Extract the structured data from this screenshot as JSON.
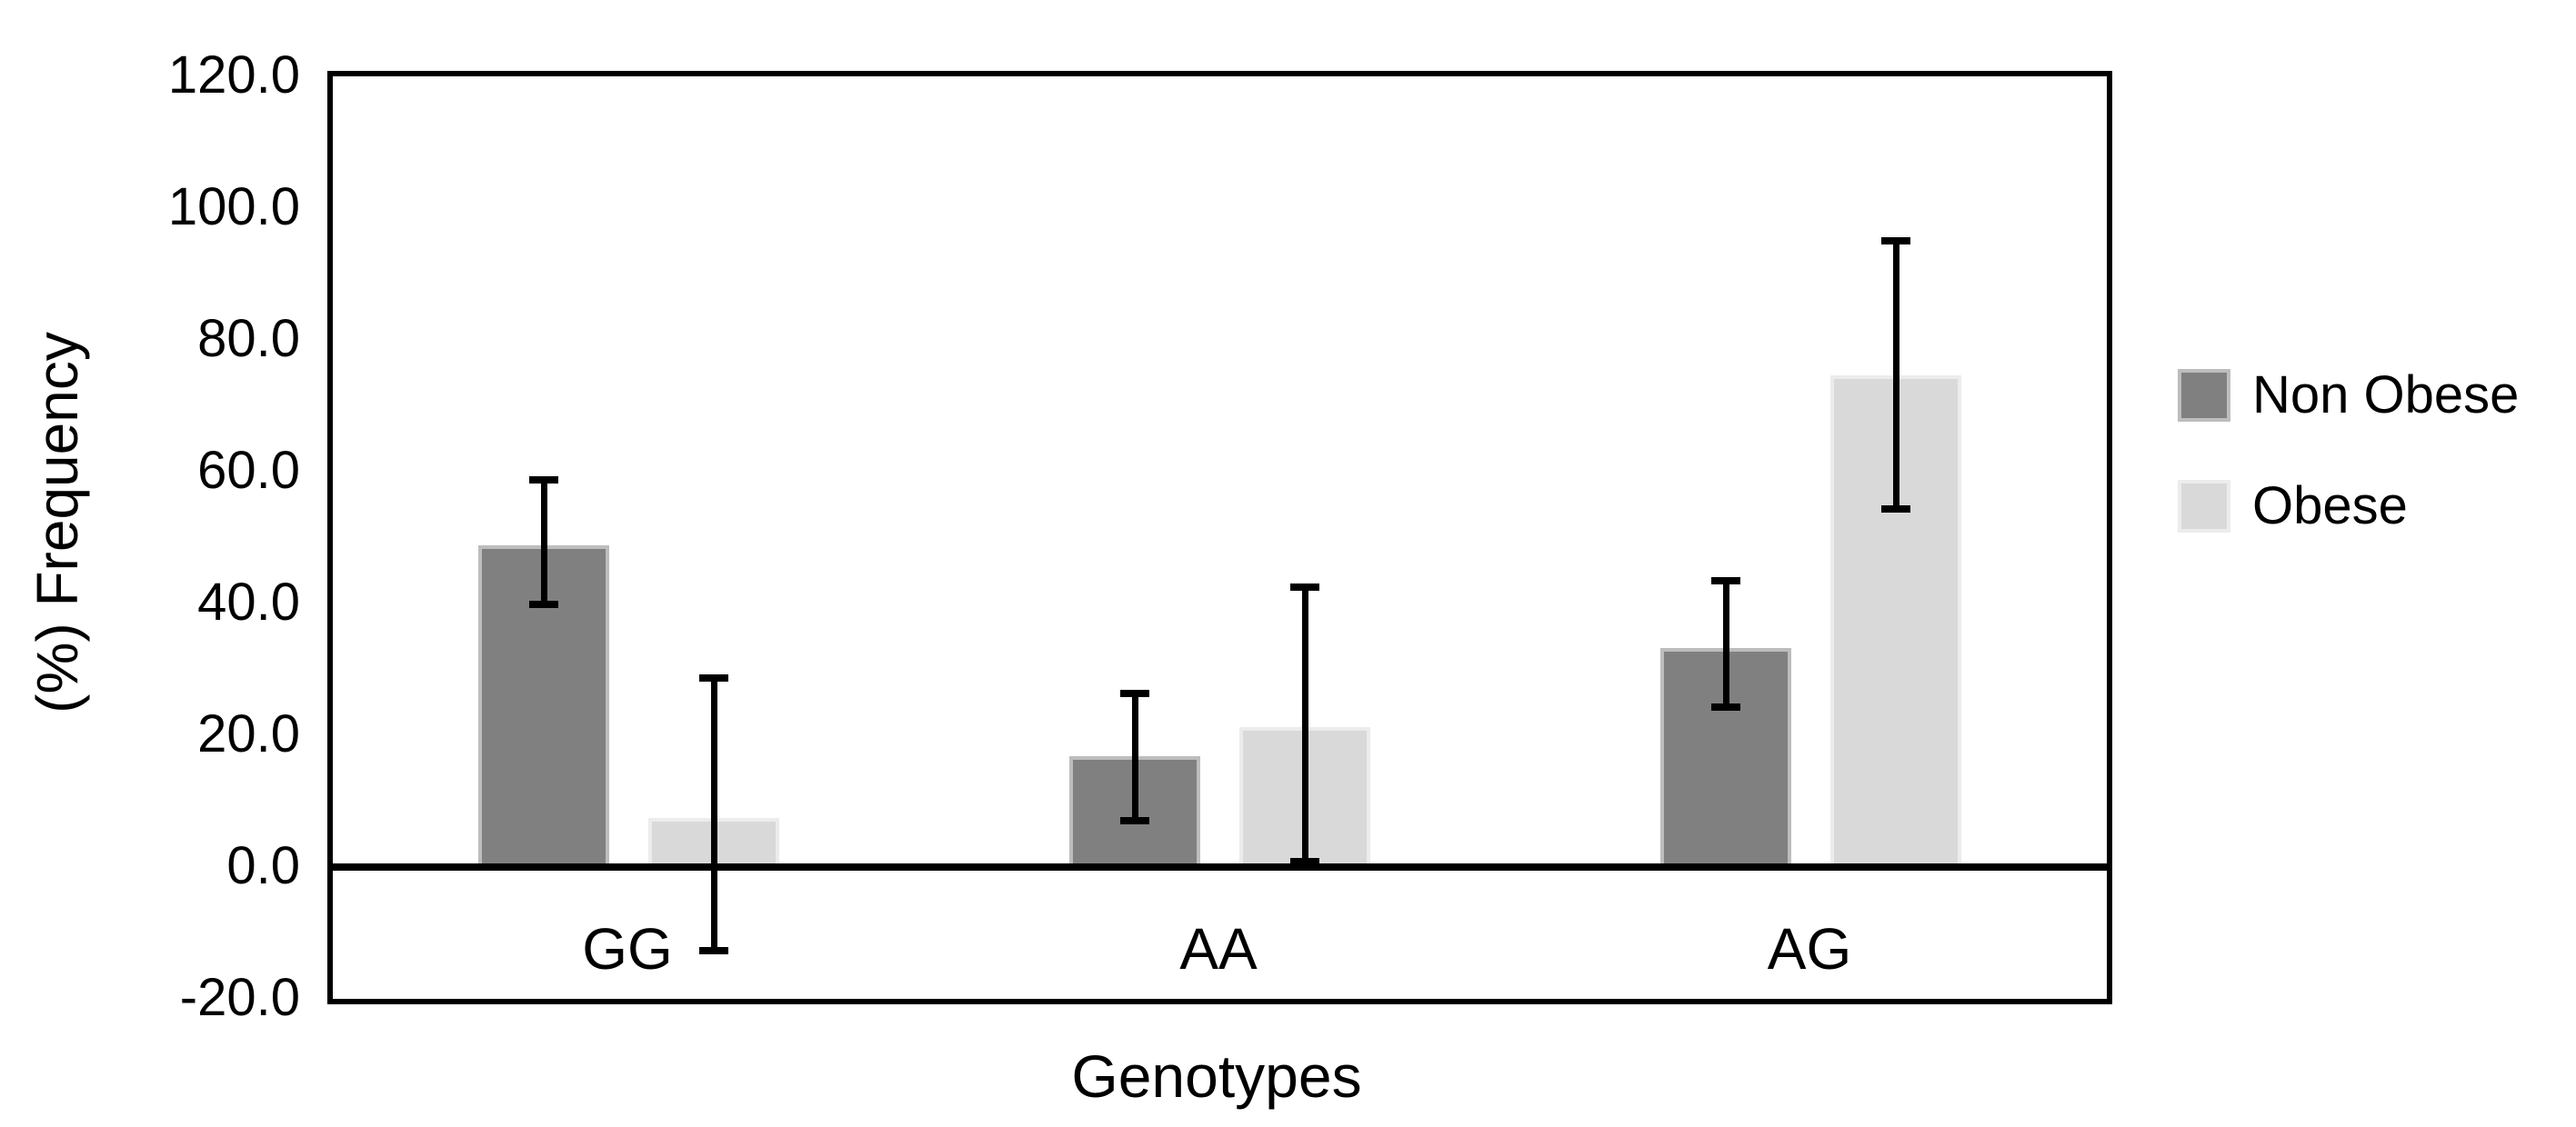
{
  "chart_data": {
    "type": "bar",
    "title": "",
    "xlabel": "Genotypes",
    "ylabel": "(%) Frequency",
    "categories": [
      "GG",
      "AA",
      "AG"
    ],
    "series": [
      {
        "name": "Non Obese",
        "color": "#808080",
        "border_color": "#bdbdbd",
        "values": [
          48.8,
          16.8,
          33.2
        ],
        "error_low": [
          39.9,
          7.0,
          24.3
        ],
        "error_high": [
          58.8,
          26.3,
          43.4
        ]
      },
      {
        "name": "Obese",
        "color": "#d9d9d9",
        "border_color": "#ececec",
        "values": [
          7.4,
          21.2,
          74.6
        ],
        "error_low": [
          -12.7,
          0.8,
          54.3
        ],
        "error_high": [
          28.7,
          42.5,
          95.0
        ]
      }
    ],
    "ylim": [
      -20,
      120
    ],
    "yticks": [
      {
        "label": "120.0",
        "value": 120
      },
      {
        "label": "100.0",
        "value": 100
      },
      {
        "label": "80.0",
        "value": 80
      },
      {
        "label": "60.0",
        "value": 60
      },
      {
        "label": "40.0",
        "value": 40
      },
      {
        "label": "20.0",
        "value": 20
      },
      {
        "label": "0.0",
        "value": 0
      },
      {
        "label": "-20.0",
        "value": -20
      }
    ],
    "grid": false,
    "legend_position": "right",
    "error_bar_color": "#000000",
    "axis_color": "#000000"
  }
}
